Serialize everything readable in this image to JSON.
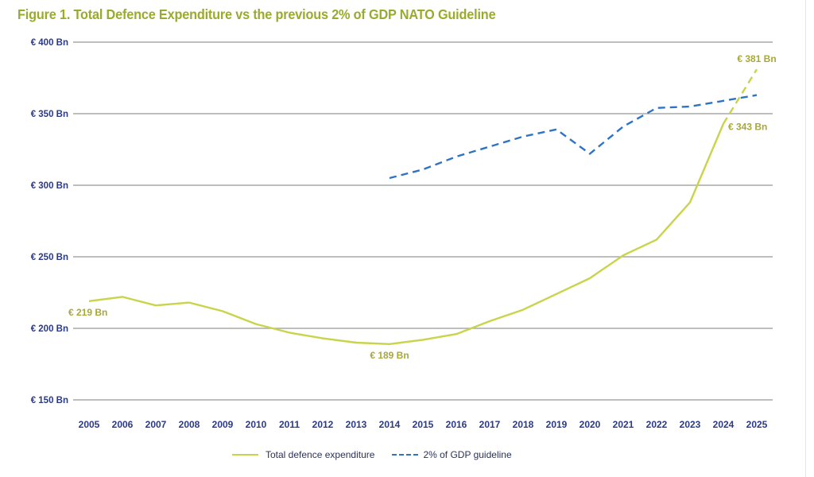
{
  "chart_data": {
    "type": "line",
    "title": "Figure 1. Total Defence Expenditure vs the previous 2% of GDP NATO Guideline",
    "xlabel": "",
    "ylabel": "",
    "ylim": [
      150,
      400
    ],
    "yticks": [
      400,
      350,
      300,
      250,
      200,
      150
    ],
    "ytick_labels": [
      "€ 400 Bn",
      "€ 350 Bn",
      "€ 300 Bn",
      "€ 250 Bn",
      "€ 200 Bn",
      "€ 150 Bn"
    ],
    "grid": true,
    "legend_position": "bottom-center",
    "x": [
      "2005",
      "2006",
      "2007",
      "2008",
      "2009",
      "2010",
      "2011",
      "2012",
      "2013",
      "2014",
      "2015",
      "2016",
      "2017",
      "2018",
      "2019",
      "2020",
      "2021",
      "2022",
      "2023",
      "2024",
      "2025"
    ],
    "series": [
      {
        "name": "Total defence expenditure",
        "color": "#c9d44a",
        "style": "solid",
        "values": [
          219,
          222,
          216,
          218,
          212,
          203,
          197,
          193,
          190,
          189,
          192,
          196,
          205,
          213,
          224,
          235,
          251,
          262,
          288,
          343,
          381
        ],
        "estimate_from_index": 19
      },
      {
        "name": "2% of GDP guideline",
        "color": "#2f74c4",
        "style": "dashed",
        "values": [
          null,
          null,
          null,
          null,
          null,
          null,
          null,
          null,
          null,
          305,
          311,
          320,
          327,
          334,
          339,
          322,
          341,
          354,
          355,
          359,
          363
        ]
      }
    ],
    "annotations": [
      {
        "text": "€ 219 Bn",
        "series": 0,
        "index": 0,
        "position": "below"
      },
      {
        "text": "€ 189 Bn",
        "series": 0,
        "index": 9,
        "position": "below"
      },
      {
        "text": "€ 343 Bn",
        "series": 0,
        "index": 19,
        "position": "right"
      },
      {
        "text": "€ 381 Bn",
        "series": 0,
        "index": 20,
        "position": "above"
      }
    ]
  },
  "legend": {
    "items": [
      {
        "label": "Total defence expenditure",
        "style": "solid",
        "color": "#c9d44a"
      },
      {
        "label": "2% of GDP guideline",
        "style": "dashed",
        "color": "#2f74c4"
      }
    ]
  }
}
